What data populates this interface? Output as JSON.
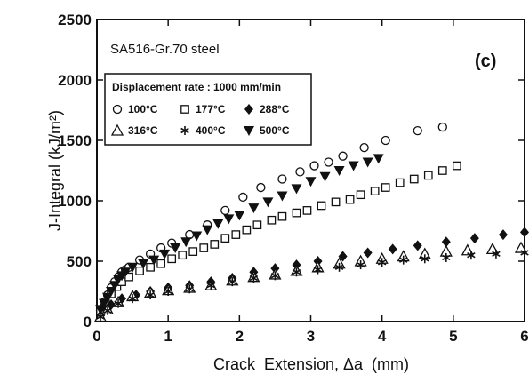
{
  "chart_data": {
    "type": "scatter",
    "title": "",
    "annotation": "SA516-Gr.70 steel",
    "panel_label": "(c)",
    "xlabel": "Crack  Extension, Δa  (mm)",
    "ylabel": "J-Integral (kJ/m²)",
    "xlim": [
      0,
      6
    ],
    "ylim": [
      0,
      2500
    ],
    "x_ticks": [
      "0",
      "1",
      "2",
      "3",
      "4",
      "5",
      "6"
    ],
    "y_ticks": [
      "0",
      "500",
      "1000",
      "1500",
      "2000",
      "2500"
    ],
    "grid": false,
    "legend_title": "Displacement rate : 1000 mm/min",
    "legend_position": "upper-left",
    "series": [
      {
        "name": "100°C",
        "marker": "circle-open",
        "points": [
          [
            0.05,
            90
          ],
          [
            0.1,
            160
          ],
          [
            0.15,
            220
          ],
          [
            0.2,
            280
          ],
          [
            0.25,
            330
          ],
          [
            0.3,
            370
          ],
          [
            0.35,
            410
          ],
          [
            0.4,
            430
          ],
          [
            0.45,
            450
          ],
          [
            0.6,
            510
          ],
          [
            0.75,
            560
          ],
          [
            0.9,
            610
          ],
          [
            1.05,
            650
          ],
          [
            1.3,
            720
          ],
          [
            1.55,
            800
          ],
          [
            1.8,
            920
          ],
          [
            2.05,
            1030
          ],
          [
            2.3,
            1110
          ],
          [
            2.6,
            1180
          ],
          [
            2.85,
            1240
          ],
          [
            3.05,
            1290
          ],
          [
            3.25,
            1320
          ],
          [
            3.45,
            1370
          ],
          [
            3.75,
            1440
          ],
          [
            4.05,
            1500
          ],
          [
            4.5,
            1580
          ],
          [
            4.85,
            1610
          ]
        ]
      },
      {
        "name": "177°C",
        "marker": "square-open",
        "points": [
          [
            0.05,
            80
          ],
          [
            0.12,
            150
          ],
          [
            0.2,
            230
          ],
          [
            0.28,
            290
          ],
          [
            0.35,
            330
          ],
          [
            0.45,
            370
          ],
          [
            0.6,
            420
          ],
          [
            0.75,
            450
          ],
          [
            0.9,
            480
          ],
          [
            1.05,
            520
          ],
          [
            1.2,
            550
          ],
          [
            1.35,
            580
          ],
          [
            1.5,
            610
          ],
          [
            1.65,
            640
          ],
          [
            1.8,
            690
          ],
          [
            1.95,
            720
          ],
          [
            2.1,
            760
          ],
          [
            2.25,
            800
          ],
          [
            2.45,
            840
          ],
          [
            2.6,
            870
          ],
          [
            2.8,
            900
          ],
          [
            2.95,
            920
          ],
          [
            3.15,
            960
          ],
          [
            3.35,
            990
          ],
          [
            3.55,
            1010
          ],
          [
            3.7,
            1050
          ],
          [
            3.9,
            1080
          ],
          [
            4.05,
            1110
          ],
          [
            4.25,
            1150
          ],
          [
            4.45,
            1180
          ],
          [
            4.65,
            1210
          ],
          [
            4.85,
            1250
          ],
          [
            5.05,
            1290
          ]
        ]
      },
      {
        "name": "288°C",
        "marker": "diamond-filled",
        "points": [
          [
            0.05,
            50
          ],
          [
            0.12,
            100
          ],
          [
            0.2,
            140
          ],
          [
            0.35,
            190
          ],
          [
            0.55,
            220
          ],
          [
            0.75,
            250
          ],
          [
            1.0,
            280
          ],
          [
            1.3,
            300
          ],
          [
            1.6,
            330
          ],
          [
            1.9,
            360
          ],
          [
            2.2,
            410
          ],
          [
            2.5,
            440
          ],
          [
            2.8,
            470
          ],
          [
            3.1,
            500
          ],
          [
            3.45,
            540
          ],
          [
            3.8,
            570
          ],
          [
            4.15,
            600
          ],
          [
            4.5,
            630
          ],
          [
            4.9,
            660
          ],
          [
            5.3,
            690
          ],
          [
            5.7,
            720
          ],
          [
            6.0,
            740
          ]
        ]
      },
      {
        "name": "316°C",
        "marker": "triangle-open",
        "points": [
          [
            0.05,
            40
          ],
          [
            0.15,
            100
          ],
          [
            0.3,
            160
          ],
          [
            0.5,
            210
          ],
          [
            0.75,
            240
          ],
          [
            1.0,
            260
          ],
          [
            1.3,
            280
          ],
          [
            1.6,
            300
          ],
          [
            1.9,
            340
          ],
          [
            2.2,
            370
          ],
          [
            2.5,
            390
          ],
          [
            2.8,
            420
          ],
          [
            3.1,
            450
          ],
          [
            3.4,
            480
          ],
          [
            3.7,
            500
          ],
          [
            4.0,
            520
          ],
          [
            4.3,
            540
          ],
          [
            4.6,
            560
          ],
          [
            4.9,
            580
          ],
          [
            5.2,
            590
          ],
          [
            5.55,
            600
          ],
          [
            5.95,
            610
          ]
        ]
      },
      {
        "name": "400°C",
        "marker": "asterisk",
        "points": [
          [
            0.05,
            40
          ],
          [
            0.15,
            90
          ],
          [
            0.3,
            150
          ],
          [
            0.5,
            190
          ],
          [
            0.75,
            220
          ],
          [
            1.0,
            250
          ],
          [
            1.3,
            270
          ],
          [
            1.6,
            300
          ],
          [
            1.9,
            330
          ],
          [
            2.2,
            360
          ],
          [
            2.5,
            380
          ],
          [
            2.8,
            410
          ],
          [
            3.1,
            430
          ],
          [
            3.4,
            450
          ],
          [
            3.7,
            470
          ],
          [
            4.0,
            490
          ],
          [
            4.3,
            510
          ],
          [
            4.6,
            520
          ],
          [
            4.9,
            530
          ],
          [
            5.25,
            550
          ],
          [
            5.6,
            560
          ],
          [
            6.0,
            570
          ]
        ]
      },
      {
        "name": "500°C",
        "marker": "triangle-down-filled",
        "points": [
          [
            0.05,
            100
          ],
          [
            0.1,
            150
          ],
          [
            0.15,
            200
          ],
          [
            0.2,
            250
          ],
          [
            0.25,
            300
          ],
          [
            0.3,
            350
          ],
          [
            0.35,
            380
          ],
          [
            0.4,
            410
          ],
          [
            0.5,
            450
          ],
          [
            0.65,
            480
          ],
          [
            0.8,
            510
          ],
          [
            0.95,
            560
          ],
          [
            1.1,
            610
          ],
          [
            1.25,
            660
          ],
          [
            1.4,
            710
          ],
          [
            1.55,
            760
          ],
          [
            1.7,
            810
          ],
          [
            1.85,
            850
          ],
          [
            2.0,
            880
          ],
          [
            2.2,
            940
          ],
          [
            2.4,
            990
          ],
          [
            2.6,
            1040
          ],
          [
            2.8,
            1100
          ],
          [
            3.0,
            1160
          ],
          [
            3.2,
            1200
          ],
          [
            3.4,
            1250
          ],
          [
            3.6,
            1290
          ],
          [
            3.8,
            1320
          ],
          [
            3.95,
            1350
          ]
        ]
      }
    ]
  }
}
